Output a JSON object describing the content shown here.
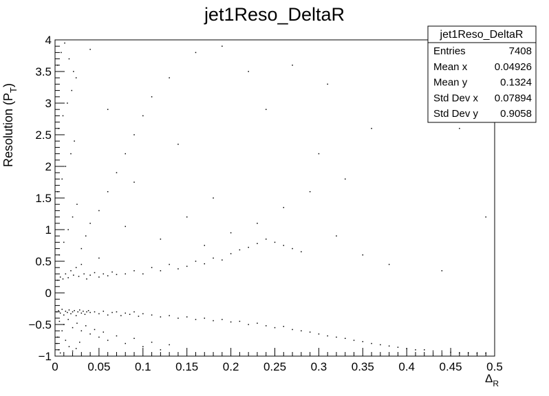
{
  "chart_data": {
    "type": "scatter",
    "title": "jet1Reso_DeltaR",
    "xlabel": {
      "main": "Δ",
      "sub": "R"
    },
    "ylabel": {
      "main": "Resolution (P",
      "sub": "T",
      "close": ")"
    },
    "xlim": [
      0,
      0.5
    ],
    "ylim": [
      -1,
      4
    ],
    "xticks": [
      {
        "v": 0,
        "label": "0"
      },
      {
        "v": 0.05,
        "label": "0.05"
      },
      {
        "v": 0.1,
        "label": "0.1"
      },
      {
        "v": 0.15,
        "label": "0.15"
      },
      {
        "v": 0.2,
        "label": "0.2"
      },
      {
        "v": 0.25,
        "label": "0.25"
      },
      {
        "v": 0.3,
        "label": "0.3"
      },
      {
        "v": 0.35,
        "label": "0.35"
      },
      {
        "v": 0.4,
        "label": "0.4"
      },
      {
        "v": 0.45,
        "label": "0.45"
      },
      {
        "v": 0.5,
        "label": "0.5"
      }
    ],
    "yticks": [
      {
        "v": -1,
        "label": "−1"
      },
      {
        "v": -0.5,
        "label": "−0.5"
      },
      {
        "v": 0,
        "label": "0"
      },
      {
        "v": 0.5,
        "label": "0.5"
      },
      {
        "v": 1,
        "label": "1"
      },
      {
        "v": 1.5,
        "label": "1.5"
      },
      {
        "v": 2,
        "label": "2"
      },
      {
        "v": 2.5,
        "label": "2.5"
      },
      {
        "v": 3,
        "label": "3"
      },
      {
        "v": 3.5,
        "label": "3.5"
      },
      {
        "v": 4,
        "label": "4"
      }
    ],
    "grid": false,
    "stats_box": {
      "title": "jet1Reso_DeltaR",
      "rows": [
        {
          "label": "Entries",
          "value": "7408"
        },
        {
          "label": "Mean x",
          "value": "0.04926"
        },
        {
          "label": "Mean y",
          "value": "0.1324"
        },
        {
          "label": "Std Dev x",
          "value": "0.07894"
        },
        {
          "label": "Std Dev y",
          "value": "0.9058"
        }
      ]
    },
    "series": [
      {
        "points": [
          [
            0.002,
            -0.3
          ],
          [
            0.004,
            -0.28
          ],
          [
            0.006,
            -0.32
          ],
          [
            0.008,
            -0.26
          ],
          [
            0.01,
            -0.35
          ],
          [
            0.012,
            -0.29
          ],
          [
            0.014,
            -0.31
          ],
          [
            0.016,
            -0.27
          ],
          [
            0.018,
            -0.33
          ],
          [
            0.02,
            -0.3
          ],
          [
            0.022,
            -0.28
          ],
          [
            0.024,
            -0.36
          ],
          [
            0.026,
            -0.3
          ],
          [
            0.028,
            -0.27
          ],
          [
            0.03,
            -0.32
          ],
          [
            0.032,
            -0.29
          ],
          [
            0.034,
            -0.34
          ],
          [
            0.036,
            -0.3
          ],
          [
            0.038,
            -0.28
          ],
          [
            0.04,
            -0.31
          ],
          [
            0.045,
            -0.3
          ],
          [
            0.05,
            -0.33
          ],
          [
            0.055,
            -0.29
          ],
          [
            0.06,
            -0.35
          ],
          [
            0.065,
            -0.31
          ],
          [
            0.07,
            -0.3
          ],
          [
            0.075,
            -0.36
          ],
          [
            0.08,
            -0.32
          ],
          [
            0.085,
            -0.34
          ],
          [
            0.09,
            -0.3
          ],
          [
            0.095,
            -0.37
          ],
          [
            0.1,
            -0.33
          ],
          [
            0.11,
            -0.35
          ],
          [
            0.12,
            -0.38
          ],
          [
            0.13,
            -0.36
          ],
          [
            0.14,
            -0.4
          ],
          [
            0.15,
            -0.38
          ],
          [
            0.16,
            -0.42
          ],
          [
            0.17,
            -0.4
          ],
          [
            0.18,
            -0.44
          ],
          [
            0.19,
            -0.42
          ],
          [
            0.2,
            -0.46
          ],
          [
            0.21,
            -0.45
          ],
          [
            0.22,
            -0.5
          ],
          [
            0.23,
            -0.48
          ],
          [
            0.24,
            -0.52
          ],
          [
            0.25,
            -0.55
          ],
          [
            0.26,
            -0.53
          ],
          [
            0.27,
            -0.58
          ],
          [
            0.28,
            -0.6
          ],
          [
            0.29,
            -0.62
          ],
          [
            0.3,
            -0.65
          ],
          [
            0.31,
            -0.68
          ],
          [
            0.32,
            -0.7
          ],
          [
            0.33,
            -0.72
          ],
          [
            0.34,
            -0.75
          ],
          [
            0.35,
            -0.77
          ],
          [
            0.36,
            -0.8
          ],
          [
            0.37,
            -0.82
          ],
          [
            0.38,
            -0.84
          ],
          [
            0.39,
            -0.86
          ],
          [
            0.4,
            -0.88
          ],
          [
            0.41,
            -0.9
          ],
          [
            0.42,
            -0.9
          ],
          [
            0.43,
            -0.92
          ],
          [
            0.44,
            -0.92
          ],
          [
            0.45,
            -0.94
          ],
          [
            0.46,
            -0.95
          ],
          [
            0.47,
            -0.95
          ],
          [
            0.48,
            -0.96
          ],
          [
            0.49,
            -0.96
          ],
          [
            0.005,
            -0.45
          ],
          [
            0.01,
            -0.5
          ],
          [
            0.015,
            -0.42
          ],
          [
            0.02,
            -0.55
          ],
          [
            0.025,
            -0.48
          ],
          [
            0.03,
            -0.6
          ],
          [
            0.035,
            -0.52
          ],
          [
            0.04,
            -0.65
          ],
          [
            0.045,
            -0.58
          ],
          [
            0.05,
            -0.7
          ],
          [
            0.055,
            -0.62
          ],
          [
            0.06,
            -0.75
          ],
          [
            0.07,
            -0.68
          ],
          [
            0.08,
            -0.8
          ],
          [
            0.09,
            -0.72
          ],
          [
            0.1,
            -0.85
          ],
          [
            0.11,
            -0.78
          ],
          [
            0.12,
            -0.9
          ],
          [
            0.13,
            -0.82
          ],
          [
            0.002,
            -0.8
          ],
          [
            0.004,
            -0.9
          ],
          [
            0.006,
            -0.95
          ],
          [
            0.003,
            -0.7
          ],
          [
            0.008,
            -0.6
          ],
          [
            0.012,
            -0.75
          ],
          [
            0.016,
            -0.85
          ],
          [
            0.02,
            -0.92
          ],
          [
            0.024,
            -0.88
          ],
          [
            0.028,
            -0.78
          ],
          [
            0.003,
            0.2
          ],
          [
            0.006,
            0.25
          ],
          [
            0.009,
            0.22
          ],
          [
            0.012,
            0.3
          ],
          [
            0.015,
            0.24
          ],
          [
            0.018,
            0.35
          ],
          [
            0.021,
            0.28
          ],
          [
            0.024,
            0.4
          ],
          [
            0.027,
            0.26
          ],
          [
            0.03,
            0.45
          ],
          [
            0.033,
            0.3
          ],
          [
            0.036,
            0.22
          ],
          [
            0.04,
            0.28
          ],
          [
            0.045,
            0.32
          ],
          [
            0.05,
            0.25
          ],
          [
            0.055,
            0.3
          ],
          [
            0.06,
            0.27
          ],
          [
            0.065,
            0.33
          ],
          [
            0.07,
            0.29
          ],
          [
            0.08,
            0.3
          ],
          [
            0.09,
            0.35
          ],
          [
            0.1,
            0.3
          ],
          [
            0.11,
            0.4
          ],
          [
            0.12,
            0.35
          ],
          [
            0.13,
            0.45
          ],
          [
            0.14,
            0.38
          ],
          [
            0.15,
            0.42
          ],
          [
            0.16,
            0.5
          ],
          [
            0.17,
            0.46
          ],
          [
            0.18,
            0.55
          ],
          [
            0.19,
            0.52
          ],
          [
            0.2,
            0.62
          ],
          [
            0.21,
            0.68
          ],
          [
            0.22,
            0.72
          ],
          [
            0.23,
            0.78
          ],
          [
            0.24,
            0.85
          ],
          [
            0.25,
            0.8
          ],
          [
            0.26,
            0.75
          ],
          [
            0.27,
            0.7
          ],
          [
            0.28,
            0.65
          ],
          [
            0.005,
            0.6
          ],
          [
            0.01,
            0.8
          ],
          [
            0.015,
            1.0
          ],
          [
            0.02,
            1.2
          ],
          [
            0.025,
            1.4
          ],
          [
            0.003,
            1.6
          ],
          [
            0.008,
            1.8
          ],
          [
            0.012,
            2.0
          ],
          [
            0.018,
            2.2
          ],
          [
            0.022,
            2.4
          ],
          [
            0.004,
            2.6
          ],
          [
            0.009,
            2.8
          ],
          [
            0.014,
            3.0
          ],
          [
            0.019,
            3.2
          ],
          [
            0.024,
            3.4
          ],
          [
            0.003,
            3.6
          ],
          [
            0.007,
            3.8
          ],
          [
            0.011,
            3.95
          ],
          [
            0.016,
            3.7
          ],
          [
            0.021,
            3.5
          ],
          [
            0.03,
            0.7
          ],
          [
            0.035,
            0.9
          ],
          [
            0.04,
            1.1
          ],
          [
            0.05,
            1.3
          ],
          [
            0.06,
            1.6
          ],
          [
            0.07,
            1.9
          ],
          [
            0.08,
            2.2
          ],
          [
            0.09,
            2.5
          ],
          [
            0.1,
            2.8
          ],
          [
            0.11,
            3.1
          ],
          [
            0.13,
            3.4
          ],
          [
            0.16,
            3.8
          ],
          [
            0.19,
            3.9
          ],
          [
            0.22,
            3.5
          ],
          [
            0.24,
            2.9
          ],
          [
            0.27,
            3.6
          ],
          [
            0.3,
            2.2
          ],
          [
            0.33,
            1.8
          ],
          [
            0.36,
            2.6
          ],
          [
            0.46,
            2.6
          ],
          [
            0.15,
            1.2
          ],
          [
            0.18,
            1.5
          ],
          [
            0.2,
            0.95
          ],
          [
            0.23,
            1.1
          ],
          [
            0.26,
            1.35
          ],
          [
            0.29,
            1.6
          ],
          [
            0.32,
            0.9
          ],
          [
            0.35,
            0.6
          ],
          [
            0.38,
            0.45
          ],
          [
            0.44,
            0.35
          ],
          [
            0.49,
            1.2
          ],
          [
            0.31,
            3.3
          ],
          [
            0.14,
            2.35
          ],
          [
            0.08,
            1.05
          ],
          [
            0.05,
            0.55
          ],
          [
            0.04,
            3.85
          ],
          [
            0.06,
            2.9
          ],
          [
            0.09,
            1.75
          ],
          [
            0.12,
            0.85
          ],
          [
            0.17,
            0.75
          ]
        ]
      }
    ]
  }
}
